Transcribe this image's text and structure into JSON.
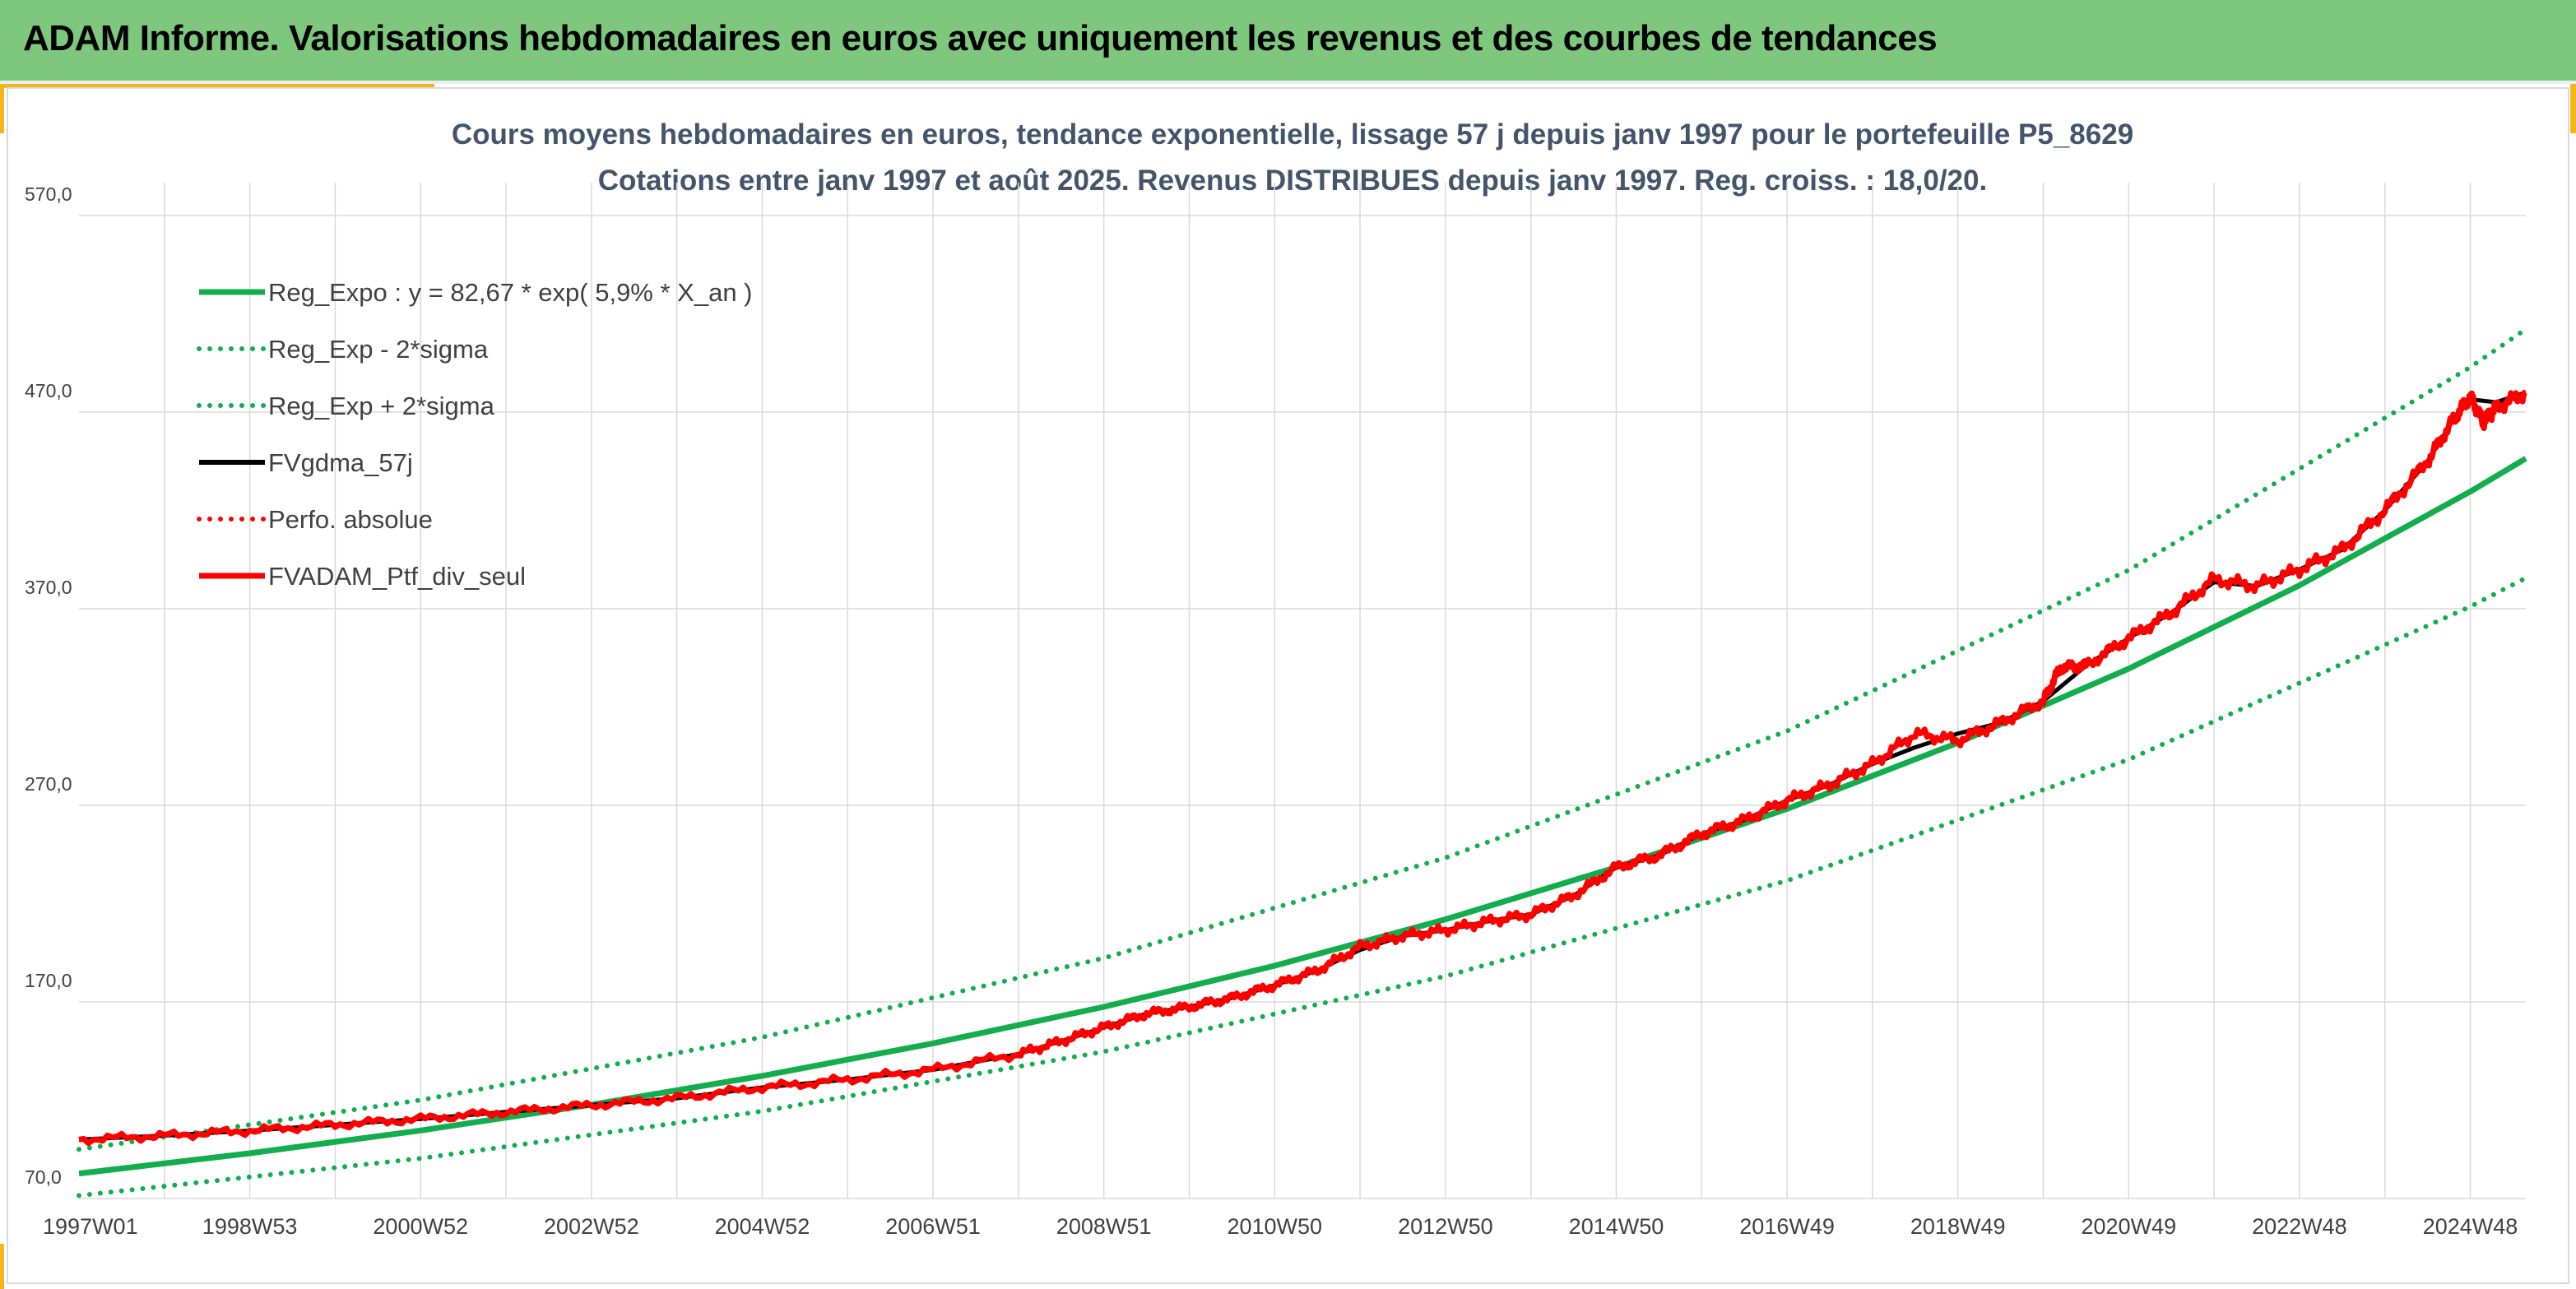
{
  "header": {
    "title": "ADAM Informe. Valorisations hebdomadaires en euros avec uniquement les revenus et des courbes de tendances"
  },
  "colors": {
    "header_band": "#7dc87c",
    "accent": "#f2b619",
    "title_text": "#44546a",
    "trend_green": "#12ad4c",
    "series_black": "#000000",
    "series_red": "#ff0000",
    "grid": "#d9d9d9"
  },
  "chart_data": {
    "type": "line",
    "title": "Cours moyens hebdomadaires en euros, tendance exponentielle, lissage 57 j depuis janv 1997 pour le portefeuille P5_8629",
    "subtitle": "Cotations entre janv 1997 et août 2025. Revenus DISTRIBUES depuis janv 1997. Reg. croiss. : 18,0/20.",
    "xlabel": "",
    "ylabel": "",
    "x_range": [
      1997.0,
      2025.65
    ],
    "ylim": [
      70,
      570
    ],
    "y_ticks": [
      "570,0",
      "470,0",
      "370,0",
      "270,0",
      "170,0",
      "70,0"
    ],
    "y_tick_values": [
      570,
      470,
      370,
      270,
      170,
      70
    ],
    "x_ticks": [
      "1997W01",
      "1998W53",
      "2000W52",
      "2002W52",
      "2004W52",
      "2006W51",
      "2008W51",
      "2010W50",
      "2012W50",
      "2014W50",
      "2016W49",
      "2018W49",
      "2020W49",
      "2022W48",
      "2024W48"
    ],
    "x_tick_values": [
      1997.0,
      1999.0,
      2001.0,
      2003.0,
      2005.0,
      2007.0,
      2009.0,
      2011.0,
      2013.0,
      2015.0,
      2017.0,
      2019.0,
      2021.0,
      2023.0,
      2025.0
    ],
    "grid": true,
    "legend_position": "top-left",
    "legend": [
      {
        "label": "Reg_Expo : y = 82,67 * exp( 5,9% *  X_an )",
        "style": "solid",
        "color": "#12ad4c"
      },
      {
        "label": "Reg_Exp - 2*sigma",
        "style": "dotted",
        "color": "#12ad4c"
      },
      {
        "label": "Reg_Exp + 2*sigma",
        "style": "dotted",
        "color": "#12ad4c"
      },
      {
        "label": "FVgdma_57j",
        "style": "solid",
        "color": "#000000"
      },
      {
        "label": "Perfo. absolue",
        "style": "dotted",
        "color": "#ff0000"
      },
      {
        "label": "FVADAM_Ptf_div_seul",
        "style": "solid",
        "color": "#ff0000"
      }
    ],
    "series": [
      {
        "name": "Reg_Expo : y = 82,67 * exp( 5,9% *  X_an )",
        "x": [
          1997.0,
          1999.0,
          2001.0,
          2003.0,
          2005.0,
          2007.0,
          2009.0,
          2011.0,
          2013.0,
          2015.0,
          2017.0,
          2019.0,
          2021.0,
          2023.0,
          2025.0,
          2025.65
        ],
        "values": [
          82.7,
          93.0,
          104.6,
          117.7,
          132.4,
          148.9,
          167.5,
          188.4,
          212.0,
          238.5,
          268.2,
          301.8,
          339.5,
          381.9,
          429.6,
          446.4
        ]
      },
      {
        "name": "Reg_Exp - 2*sigma",
        "x": [
          1997.0,
          2001.0,
          2005.0,
          2009.0,
          2013.0,
          2017.0,
          2021.0,
          2025.0,
          2025.65
        ],
        "values": [
          71.5,
          90.4,
          114.4,
          144.7,
          183.1,
          231.7,
          293.3,
          371.1,
          385.6
        ]
      },
      {
        "name": "Reg_Exp + 2*sigma",
        "x": [
          1997.0,
          2001.0,
          2005.0,
          2009.0,
          2013.0,
          2017.0,
          2021.0,
          2025.0,
          2025.65
        ],
        "values": [
          95.0,
          120.1,
          152.0,
          192.3,
          243.3,
          307.8,
          389.6,
          492.8,
          512.2
        ]
      },
      {
        "name": "FVgdma_57j",
        "x": [
          1997.0,
          1998.0,
          1999.0,
          2000.0,
          2001.0,
          2002.0,
          2003.0,
          2004.0,
          2005.0,
          2006.0,
          2007.0,
          2008.0,
          2008.5,
          2009.0,
          2009.5,
          2010.0,
          2010.5,
          2011.0,
          2011.5,
          2012.0,
          2012.5,
          2013.0,
          2013.5,
          2014.0,
          2014.5,
          2015.0,
          2015.5,
          2016.0,
          2016.5,
          2017.0,
          2017.5,
          2018.0,
          2018.5,
          2019.0,
          2019.5,
          2020.0,
          2020.5,
          2021.0,
          2021.5,
          2022.0,
          2022.5,
          2023.0,
          2023.5,
          2024.0,
          2024.5,
          2024.8,
          2025.0,
          2025.3,
          2025.65
        ],
        "values": [
          100.0,
          102.0,
          104.5,
          107.5,
          110.5,
          114.0,
          117.5,
          121.0,
          126.5,
          130.5,
          135.5,
          143.5,
          150.0,
          157.0,
          164.0,
          167.5,
          172.0,
          178.5,
          186.0,
          196.5,
          203.5,
          206.5,
          211.0,
          214.5,
          224.0,
          238.5,
          244.5,
          255.5,
          262.5,
          272.5,
          280.5,
          291.0,
          299.5,
          306.5,
          312.0,
          323.0,
          341.0,
          355.0,
          368.0,
          383.5,
          381.5,
          390.0,
          400.0,
          420.0,
          445.0,
          466.0,
          476.5,
          475.0,
          480.0
        ]
      },
      {
        "name": "FVADAM_Ptf_div_seul",
        "x": [
          1997.0,
          1998.0,
          1999.0,
          2000.0,
          2001.0,
          2002.0,
          2003.0,
          2004.0,
          2005.0,
          2006.0,
          2007.0,
          2008.0,
          2008.5,
          2009.0,
          2009.5,
          2010.0,
          2010.5,
          2011.0,
          2011.5,
          2012.0,
          2012.5,
          2013.0,
          2013.5,
          2014.0,
          2014.5,
          2015.0,
          2015.5,
          2016.0,
          2016.5,
          2017.0,
          2017.5,
          2018.0,
          2018.5,
          2019.0,
          2019.5,
          2020.0,
          2020.2,
          2020.5,
          2021.0,
          2021.5,
          2022.0,
          2022.5,
          2023.0,
          2023.5,
          2024.0,
          2024.5,
          2024.8,
          2025.0,
          2025.15,
          2025.3,
          2025.65
        ],
        "values": [
          100.0,
          102.0,
          104.5,
          107.5,
          110.5,
          114.0,
          117.5,
          121.0,
          126.5,
          130.5,
          135.5,
          143.5,
          150.0,
          157.0,
          164.0,
          167.5,
          172.0,
          178.5,
          186.0,
          198.0,
          203.5,
          206.5,
          211.0,
          214.5,
          224.0,
          238.5,
          244.5,
          255.5,
          262.5,
          272.5,
          280.5,
          291.0,
          306.5,
          303.0,
          312.0,
          323.0,
          340.0,
          341.0,
          355.0,
          368.0,
          385.0,
          381.5,
          390.0,
          400.0,
          420.0,
          445.0,
          466.0,
          478.0,
          465.0,
          472.0,
          480.0
        ]
      }
    ]
  }
}
